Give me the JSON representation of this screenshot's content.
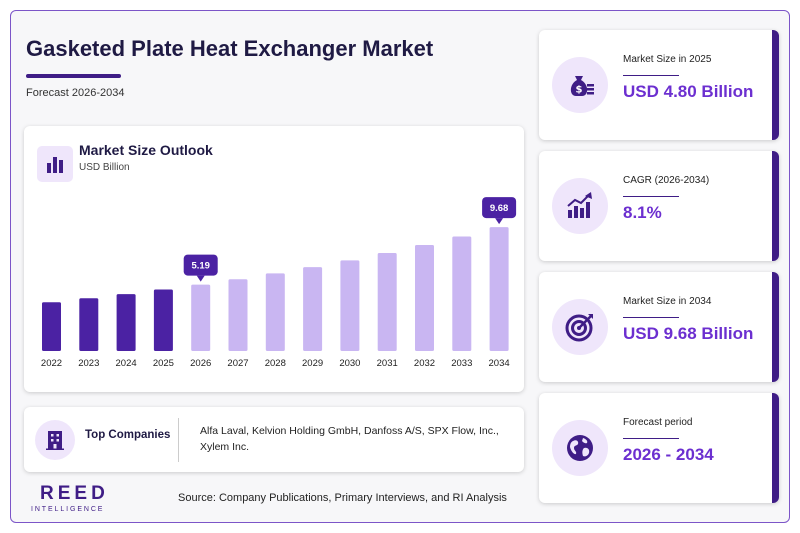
{
  "header": {
    "title": "Gasketed Plate Heat Exchanger Market",
    "subtitle": "Forecast 2026-2034"
  },
  "chart": {
    "title": "Market Size Outlook",
    "unit": "USD Billion",
    "icon": "bar-chart-icon"
  },
  "chart_data": {
    "type": "bar",
    "title": "Market Size Outlook",
    "ylabel": "USD Billion",
    "categories": [
      "2022",
      "2023",
      "2024",
      "2025",
      "2026",
      "2027",
      "2028",
      "2029",
      "2030",
      "2031",
      "2032",
      "2033",
      "2034"
    ],
    "values": [
      3.81,
      4.12,
      4.44,
      4.8,
      5.19,
      5.61,
      6.06,
      6.55,
      7.08,
      7.66,
      8.28,
      8.95,
      9.68
    ],
    "ylim": [
      0,
      10
    ],
    "grid": false,
    "historical_color": "#4b22a3",
    "forecast_color": "#c9b6f2",
    "callouts": [
      {
        "category": "2026",
        "label": "5.19"
      },
      {
        "category": "2034",
        "label": "9.68"
      }
    ]
  },
  "companies": {
    "label": "Top Companies",
    "list": "Alfa Laval, Kelvion Holding GmbH, Danfoss A/S, SPX Flow, Inc., Xylem Inc.",
    "icon": "building-icon"
  },
  "stats": [
    {
      "label": "Market Size in 2025",
      "value": "USD 4.80 Billion",
      "icon": "money-bag-icon"
    },
    {
      "label": "CAGR (2026-2034)",
      "value": "8.1%",
      "icon": "growth-chart-icon"
    },
    {
      "label": "Market Size in 2034",
      "value": "USD 9.68 Billion",
      "icon": "target-icon"
    },
    {
      "label": "Forecast period",
      "value": "2026 - 2034",
      "icon": "globe-icon"
    }
  ],
  "footer": {
    "logo_main": "REED",
    "logo_sub": "INTELLIGENCE",
    "source": "Source: Company Publications, Primary Interviews, and RI Analysis"
  },
  "colors": {
    "brand": "#3f1d86",
    "accent": "#6c2fd0",
    "icon_bg": "#efe6fb"
  }
}
